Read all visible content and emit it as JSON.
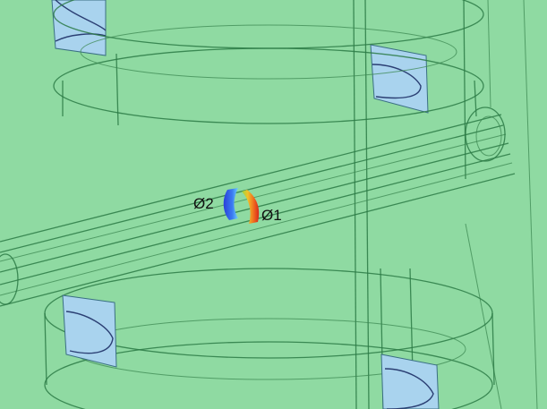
{
  "viewport": {
    "background": "#8fdaa2",
    "edge_color": "#2c7a45",
    "face_color": "#a9d3ee"
  },
  "ports": [
    {
      "label": "Ø2",
      "color_scheme": "blue"
    },
    {
      "label": "Ø1",
      "color_scheme": "red-orange"
    }
  ]
}
